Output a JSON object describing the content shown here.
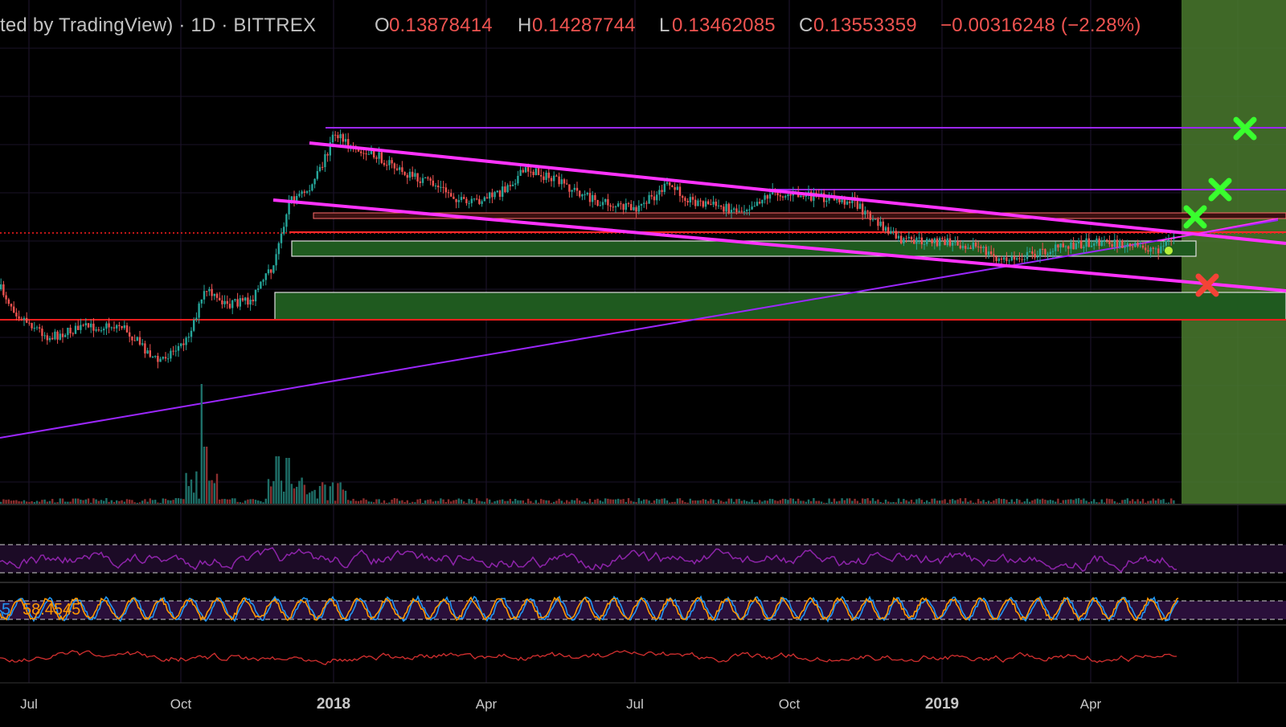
{
  "header": {
    "source": "ted by TradingView) · 1D · BITTREX",
    "o_key": "O",
    "o_val": "0.13878414",
    "h_key": "H",
    "h_val": "0.14287744",
    "l_key": "L",
    "l_val": "0.13462085",
    "c_key": "C",
    "c_val": "0.13553359",
    "change": "−0.00316248 (−2.28%)"
  },
  "stoch": {
    "k_label": "5",
    "d_label": "58.4545"
  },
  "colors": {
    "up": "#26a69a",
    "down": "#ef5350",
    "magenta": "#ff33ff",
    "purple": "#9c27ff",
    "zone_green": "#1f5a1f",
    "future_green": "#4a7a2e",
    "cross_green": "#39ff2e",
    "cross_red": "#f44336",
    "rsi": "#8e24aa",
    "stoch_k": "#2196f3",
    "stoch_d": "#ff9800",
    "osc_red": "#d32f2f"
  },
  "chart_data": {
    "type": "candlestick",
    "title": "",
    "x_tick_labels": [
      "Jul",
      "Oct",
      "2018",
      "Apr",
      "Jul",
      "Oct",
      "2019",
      "Apr"
    ],
    "last_ohlc": {
      "open": 0.13878414,
      "high": 0.14287744,
      "low": 0.13462085,
      "close": 0.13553359
    },
    "grid": true,
    "annotations": {
      "green_crosses": 3,
      "red_crosses": 1,
      "support_zones": 2,
      "resistance_zone": 1,
      "trendlines": [
        "descending channel upper",
        "descending channel lower",
        "ascending support",
        "horizontal resistance"
      ]
    },
    "panes": [
      "price+volume",
      "RSI",
      "Stochastic",
      "oscillator"
    ]
  }
}
